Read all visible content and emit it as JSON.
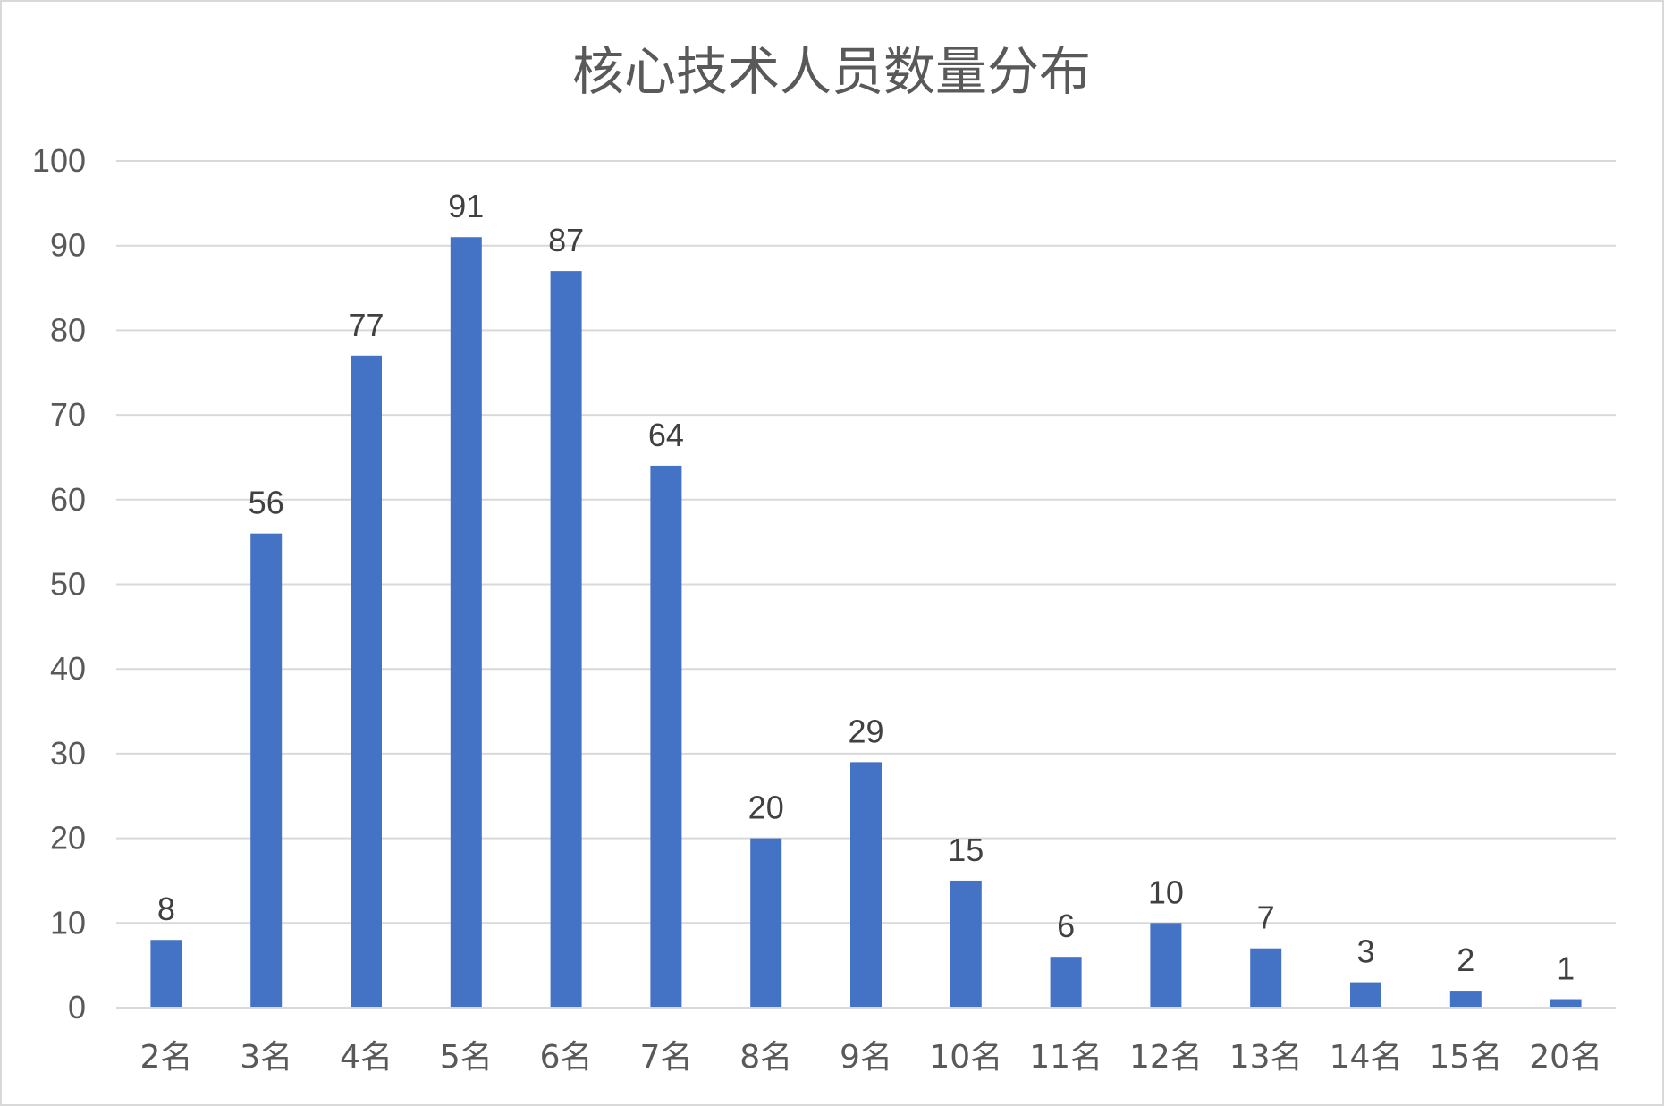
{
  "chart_data": {
    "type": "bar",
    "title": "核心技术人员数量分布",
    "xlabel": "",
    "ylabel": "",
    "categories": [
      "2名",
      "3名",
      "4名",
      "5名",
      "6名",
      "7名",
      "8名",
      "9名",
      "10名",
      "11名",
      "12名",
      "13名",
      "14名",
      "15名",
      "20名"
    ],
    "values": [
      8,
      56,
      77,
      91,
      87,
      64,
      20,
      29,
      15,
      6,
      10,
      7,
      3,
      2,
      1
    ],
    "ylim": [
      0,
      100
    ],
    "yticks": [
      0,
      10,
      20,
      30,
      40,
      50,
      60,
      70,
      80,
      90,
      100
    ],
    "grid": true,
    "data_labels": true,
    "legend": "none",
    "bar_color": "#4472C4"
  }
}
